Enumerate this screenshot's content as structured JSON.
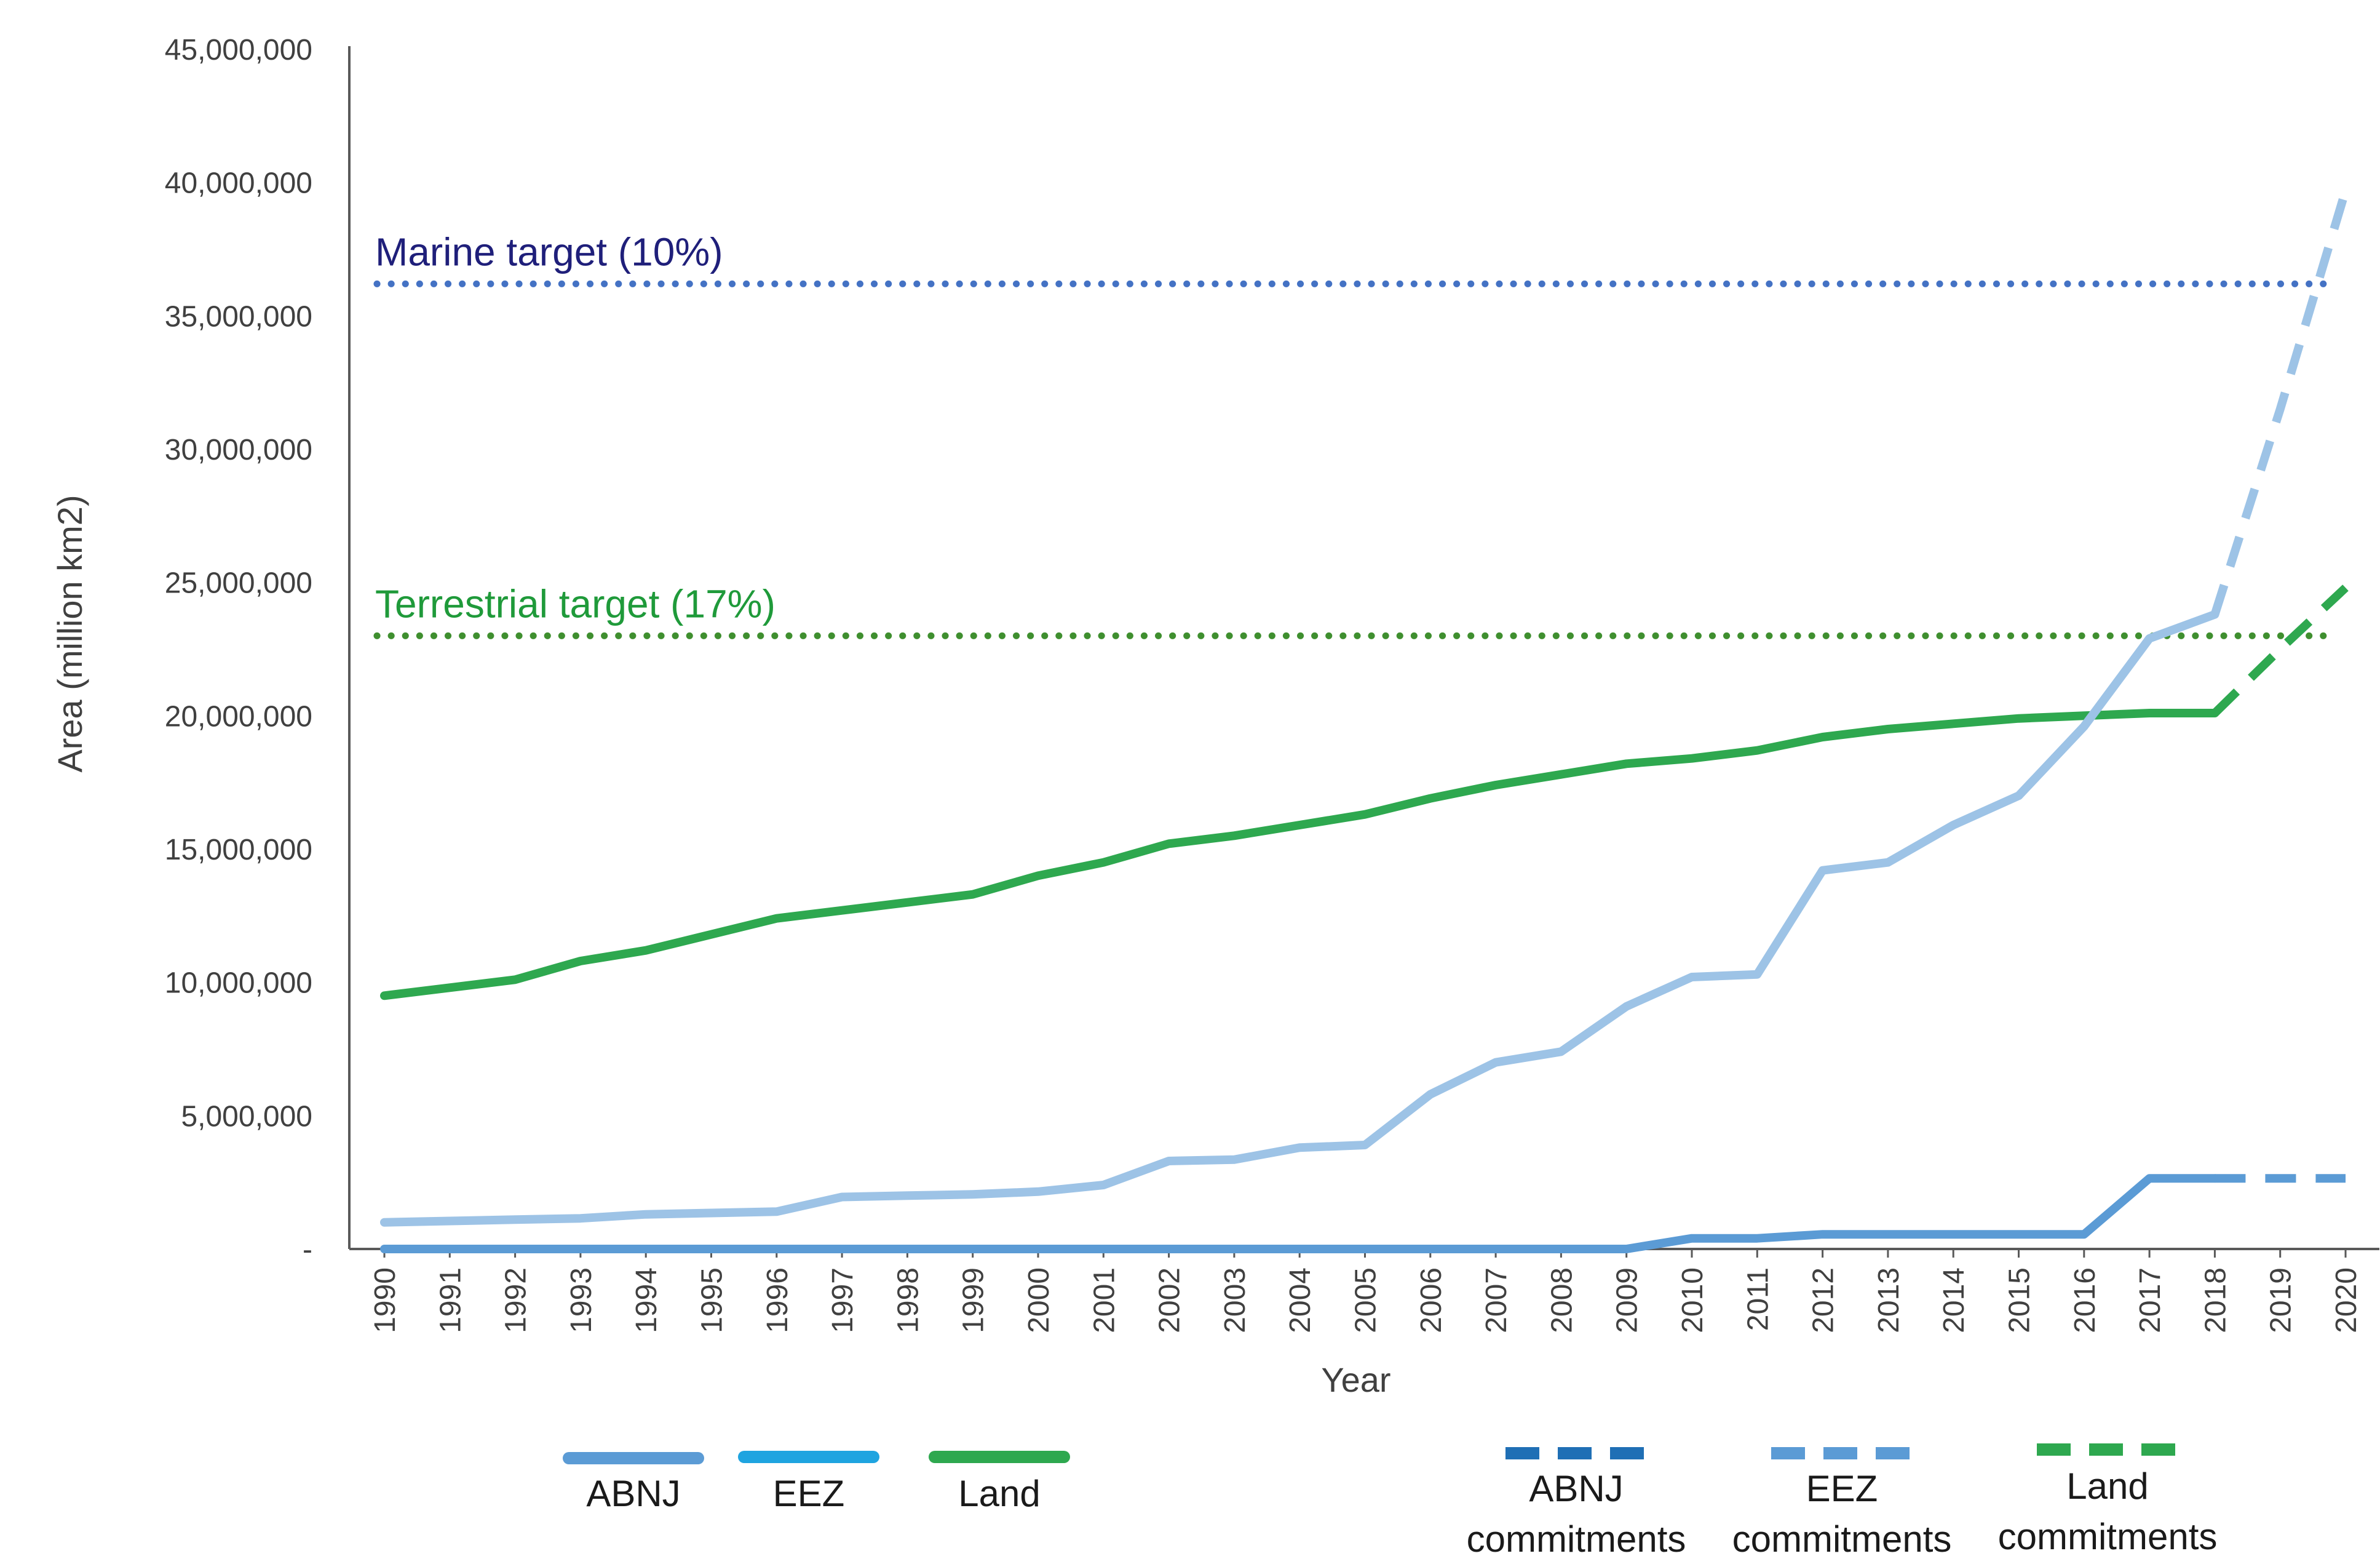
{
  "colors": {
    "abnj": "#5b9bd5",
    "eez": "#9dc3e6",
    "land": "#2ea84f",
    "marine_target": "#4472c4",
    "marine_target_text": "#1f1f7a",
    "terrestrial_target": "#3f8f2f",
    "terrestrial_target_text": "#1f9a3a",
    "abnj_commit_legend": "#1f6fb5",
    "eez_commit_legend": "#5b9bd5",
    "land_commit_legend": "#2ea84f",
    "eez_legend": "#1fa4e0",
    "axis": "#595959",
    "text": "#404040"
  },
  "chart_data": {
    "type": "line",
    "xlabel": "Year",
    "ylabel": "Area (million km2)",
    "ylim": [
      0,
      45000000
    ],
    "y_ticks": [
      0,
      5000000,
      10000000,
      15000000,
      20000000,
      25000000,
      30000000,
      35000000,
      40000000,
      45000000
    ],
    "y_tick_labels": [
      "-",
      "5,000,000",
      "10,000,000",
      "15,000,000",
      "20,000,000",
      "25,000,000",
      "30,000,000",
      "35,000,000",
      "40,000,000",
      "45,000,000"
    ],
    "categories": [
      "1990",
      "1991",
      "1992",
      "1993",
      "1994",
      "1995",
      "1996",
      "1997",
      "1998",
      "1999",
      "2000",
      "2001",
      "2002",
      "2003",
      "2004",
      "2005",
      "2006",
      "2007",
      "2008",
      "2009",
      "2010",
      "2011",
      "2012",
      "2013",
      "2014",
      "2015",
      "2016",
      "2017",
      "2018",
      "2019",
      "2020"
    ],
    "series": [
      {
        "name": "Land",
        "style": "solid",
        "color_key": "land",
        "values": [
          9500000,
          9800000,
          10100000,
          10800000,
          11200000,
          11800000,
          12400000,
          12700000,
          13000000,
          13300000,
          14000000,
          14500000,
          15200000,
          15500000,
          15900000,
          16300000,
          16900000,
          17400000,
          17800000,
          18200000,
          18400000,
          18700000,
          19200000,
          19500000,
          19700000,
          19900000,
          20000000,
          20100000,
          20100000,
          null,
          null
        ]
      },
      {
        "name": "EEZ",
        "style": "solid",
        "color_key": "eez",
        "values": [
          1000000,
          1050000,
          1100000,
          1150000,
          1300000,
          1350000,
          1400000,
          1950000,
          2000000,
          2050000,
          2150000,
          2400000,
          3300000,
          3350000,
          3800000,
          3900000,
          5800000,
          7000000,
          7400000,
          9100000,
          10200000,
          10300000,
          14200000,
          14500000,
          15900000,
          17000000,
          19600000,
          22900000,
          23800000,
          null,
          null
        ]
      },
      {
        "name": "ABNJ",
        "style": "solid",
        "color_key": "abnj",
        "values": [
          0,
          0,
          0,
          0,
          0,
          0,
          0,
          0,
          0,
          0,
          0,
          0,
          0,
          0,
          0,
          0,
          0,
          0,
          0,
          0,
          400000,
          400000,
          550000,
          550000,
          550000,
          550000,
          550000,
          2650000,
          2650000,
          null,
          null
        ]
      },
      {
        "name": "Land commitments",
        "style": "dashed",
        "color_key": "land",
        "values": [
          null,
          null,
          null,
          null,
          null,
          null,
          null,
          null,
          null,
          null,
          null,
          null,
          null,
          null,
          null,
          null,
          null,
          null,
          null,
          null,
          null,
          null,
          null,
          null,
          null,
          null,
          null,
          null,
          20100000,
          22500000,
          24800000
        ]
      },
      {
        "name": "EEZ commitments",
        "style": "dashed",
        "color_key": "eez",
        "values": [
          null,
          null,
          null,
          null,
          null,
          null,
          null,
          null,
          null,
          null,
          null,
          null,
          null,
          null,
          null,
          null,
          null,
          null,
          null,
          null,
          null,
          null,
          null,
          null,
          null,
          null,
          null,
          null,
          23800000,
          31500000,
          39700000
        ]
      },
      {
        "name": "ABNJ commitments",
        "style": "dashed",
        "color_key": "abnj",
        "values": [
          null,
          null,
          null,
          null,
          null,
          null,
          null,
          null,
          null,
          null,
          null,
          null,
          null,
          null,
          null,
          null,
          null,
          null,
          null,
          null,
          null,
          null,
          null,
          null,
          null,
          null,
          null,
          null,
          2650000,
          2650000,
          2650000
        ]
      }
    ],
    "reference_lines": [
      {
        "label": "Marine target (10%)",
        "value": 36200000,
        "style": "dotted",
        "color_key": "marine_target",
        "text_color_key": "marine_target_text"
      },
      {
        "label": "Terrestrial target (17%)",
        "value": 23000000,
        "style": "dotted",
        "color_key": "terrestrial_target",
        "text_color_key": "terrestrial_target_text"
      }
    ],
    "legend": [
      {
        "lines": [
          "ABNJ"
        ],
        "style": "solid",
        "color_key": "abnj"
      },
      {
        "lines": [
          "EEZ"
        ],
        "style": "solid",
        "color_key": "eez_legend"
      },
      {
        "lines": [
          "Land"
        ],
        "style": "solid",
        "color_key": "land"
      },
      {
        "lines": [
          "ABNJ",
          "commitments"
        ],
        "style": "dashed",
        "color_key": "abnj_commit_legend"
      },
      {
        "lines": [
          "EEZ",
          "commitments"
        ],
        "style": "dashed",
        "color_key": "eez_commit_legend"
      },
      {
        "lines": [
          "Land",
          "commitments"
        ],
        "style": "dashed",
        "color_key": "land_commit_legend"
      }
    ],
    "legend_position": "bottom",
    "grid": false
  }
}
